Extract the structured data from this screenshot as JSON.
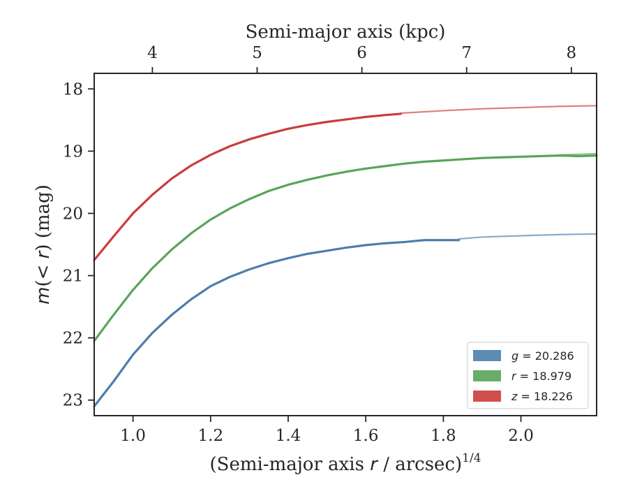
{
  "chart_data": {
    "type": "line",
    "xlabel": "(Semi-major axis r / arcsec)^{1/4}",
    "ylabel": "m(<r) (mag)",
    "top_xlabel": "Semi-major axis (kpc)",
    "xlim": [
      0.9,
      2.195
    ],
    "ylim": [
      23.25,
      17.75
    ],
    "y_inverted": true,
    "xticks": [
      1.0,
      1.2,
      1.4,
      1.6,
      1.8,
      2.0
    ],
    "xtick_labels": [
      "1.0",
      "1.2",
      "1.4",
      "1.6",
      "1.8",
      "2.0"
    ],
    "yticks": [
      18,
      19,
      20,
      21,
      22,
      23
    ],
    "ytick_labels": [
      "18",
      "19",
      "20",
      "21",
      "22",
      "23"
    ],
    "top_xticks_kpc": [
      4,
      5,
      6,
      7,
      8
    ],
    "top_xtick_labels": [
      "4",
      "5",
      "6",
      "7",
      "8"
    ],
    "top_xtick_positions": [
      1.05,
      1.32,
      1.59,
      1.86,
      2.13
    ],
    "grid": false,
    "legend_placement": "lower-right",
    "series": [
      {
        "name": "g = 20.286",
        "color": "#4c7eac",
        "x": [
          0.9,
          0.95,
          1.0,
          1.05,
          1.1,
          1.15,
          1.2,
          1.25,
          1.3,
          1.35,
          1.4,
          1.45,
          1.5,
          1.55,
          1.6,
          1.65,
          1.7,
          1.75,
          1.8,
          1.84
        ],
        "y": [
          23.1,
          22.7,
          22.27,
          21.92,
          21.63,
          21.38,
          21.17,
          21.02,
          20.9,
          20.8,
          20.72,
          20.65,
          20.6,
          20.55,
          20.51,
          20.48,
          20.46,
          20.43,
          20.43,
          20.43
        ],
        "extension_x": [
          1.84,
          1.9,
          2.0,
          2.1,
          2.195
        ],
        "extension_y": [
          20.41,
          20.38,
          20.36,
          20.34,
          20.33
        ]
      },
      {
        "name": "r = 18.979",
        "color": "#5aa45a",
        "x": [
          0.9,
          0.95,
          1.0,
          1.05,
          1.1,
          1.15,
          1.2,
          1.25,
          1.3,
          1.35,
          1.4,
          1.45,
          1.5,
          1.55,
          1.6,
          1.65,
          1.7,
          1.75,
          1.8,
          1.85,
          1.9,
          1.95,
          2.0,
          2.05,
          2.1,
          2.15,
          2.195
        ],
        "y": [
          22.05,
          21.63,
          21.23,
          20.88,
          20.58,
          20.32,
          20.1,
          19.92,
          19.77,
          19.64,
          19.54,
          19.46,
          19.39,
          19.33,
          19.28,
          19.24,
          19.2,
          19.17,
          19.15,
          19.13,
          19.11,
          19.1,
          19.09,
          19.08,
          19.07,
          19.08,
          19.07
        ],
        "extension_x": [
          2.1,
          2.15,
          2.195
        ],
        "extension_y": [
          19.06,
          19.05,
          19.04
        ]
      },
      {
        "name": "z = 18.226",
        "color": "#cc3b3b",
        "x": [
          0.9,
          0.95,
          1.0,
          1.05,
          1.1,
          1.15,
          1.2,
          1.25,
          1.3,
          1.35,
          1.4,
          1.45,
          1.5,
          1.55,
          1.6,
          1.65,
          1.69
        ],
        "y": [
          20.75,
          20.37,
          20.0,
          19.7,
          19.44,
          19.23,
          19.06,
          18.92,
          18.81,
          18.72,
          18.64,
          18.58,
          18.53,
          18.49,
          18.45,
          18.42,
          18.4
        ],
        "extension_x": [
          1.69,
          1.8,
          1.9,
          2.0,
          2.1,
          2.195
        ],
        "extension_y": [
          18.39,
          18.35,
          18.32,
          18.3,
          18.28,
          18.27
        ]
      }
    ]
  }
}
